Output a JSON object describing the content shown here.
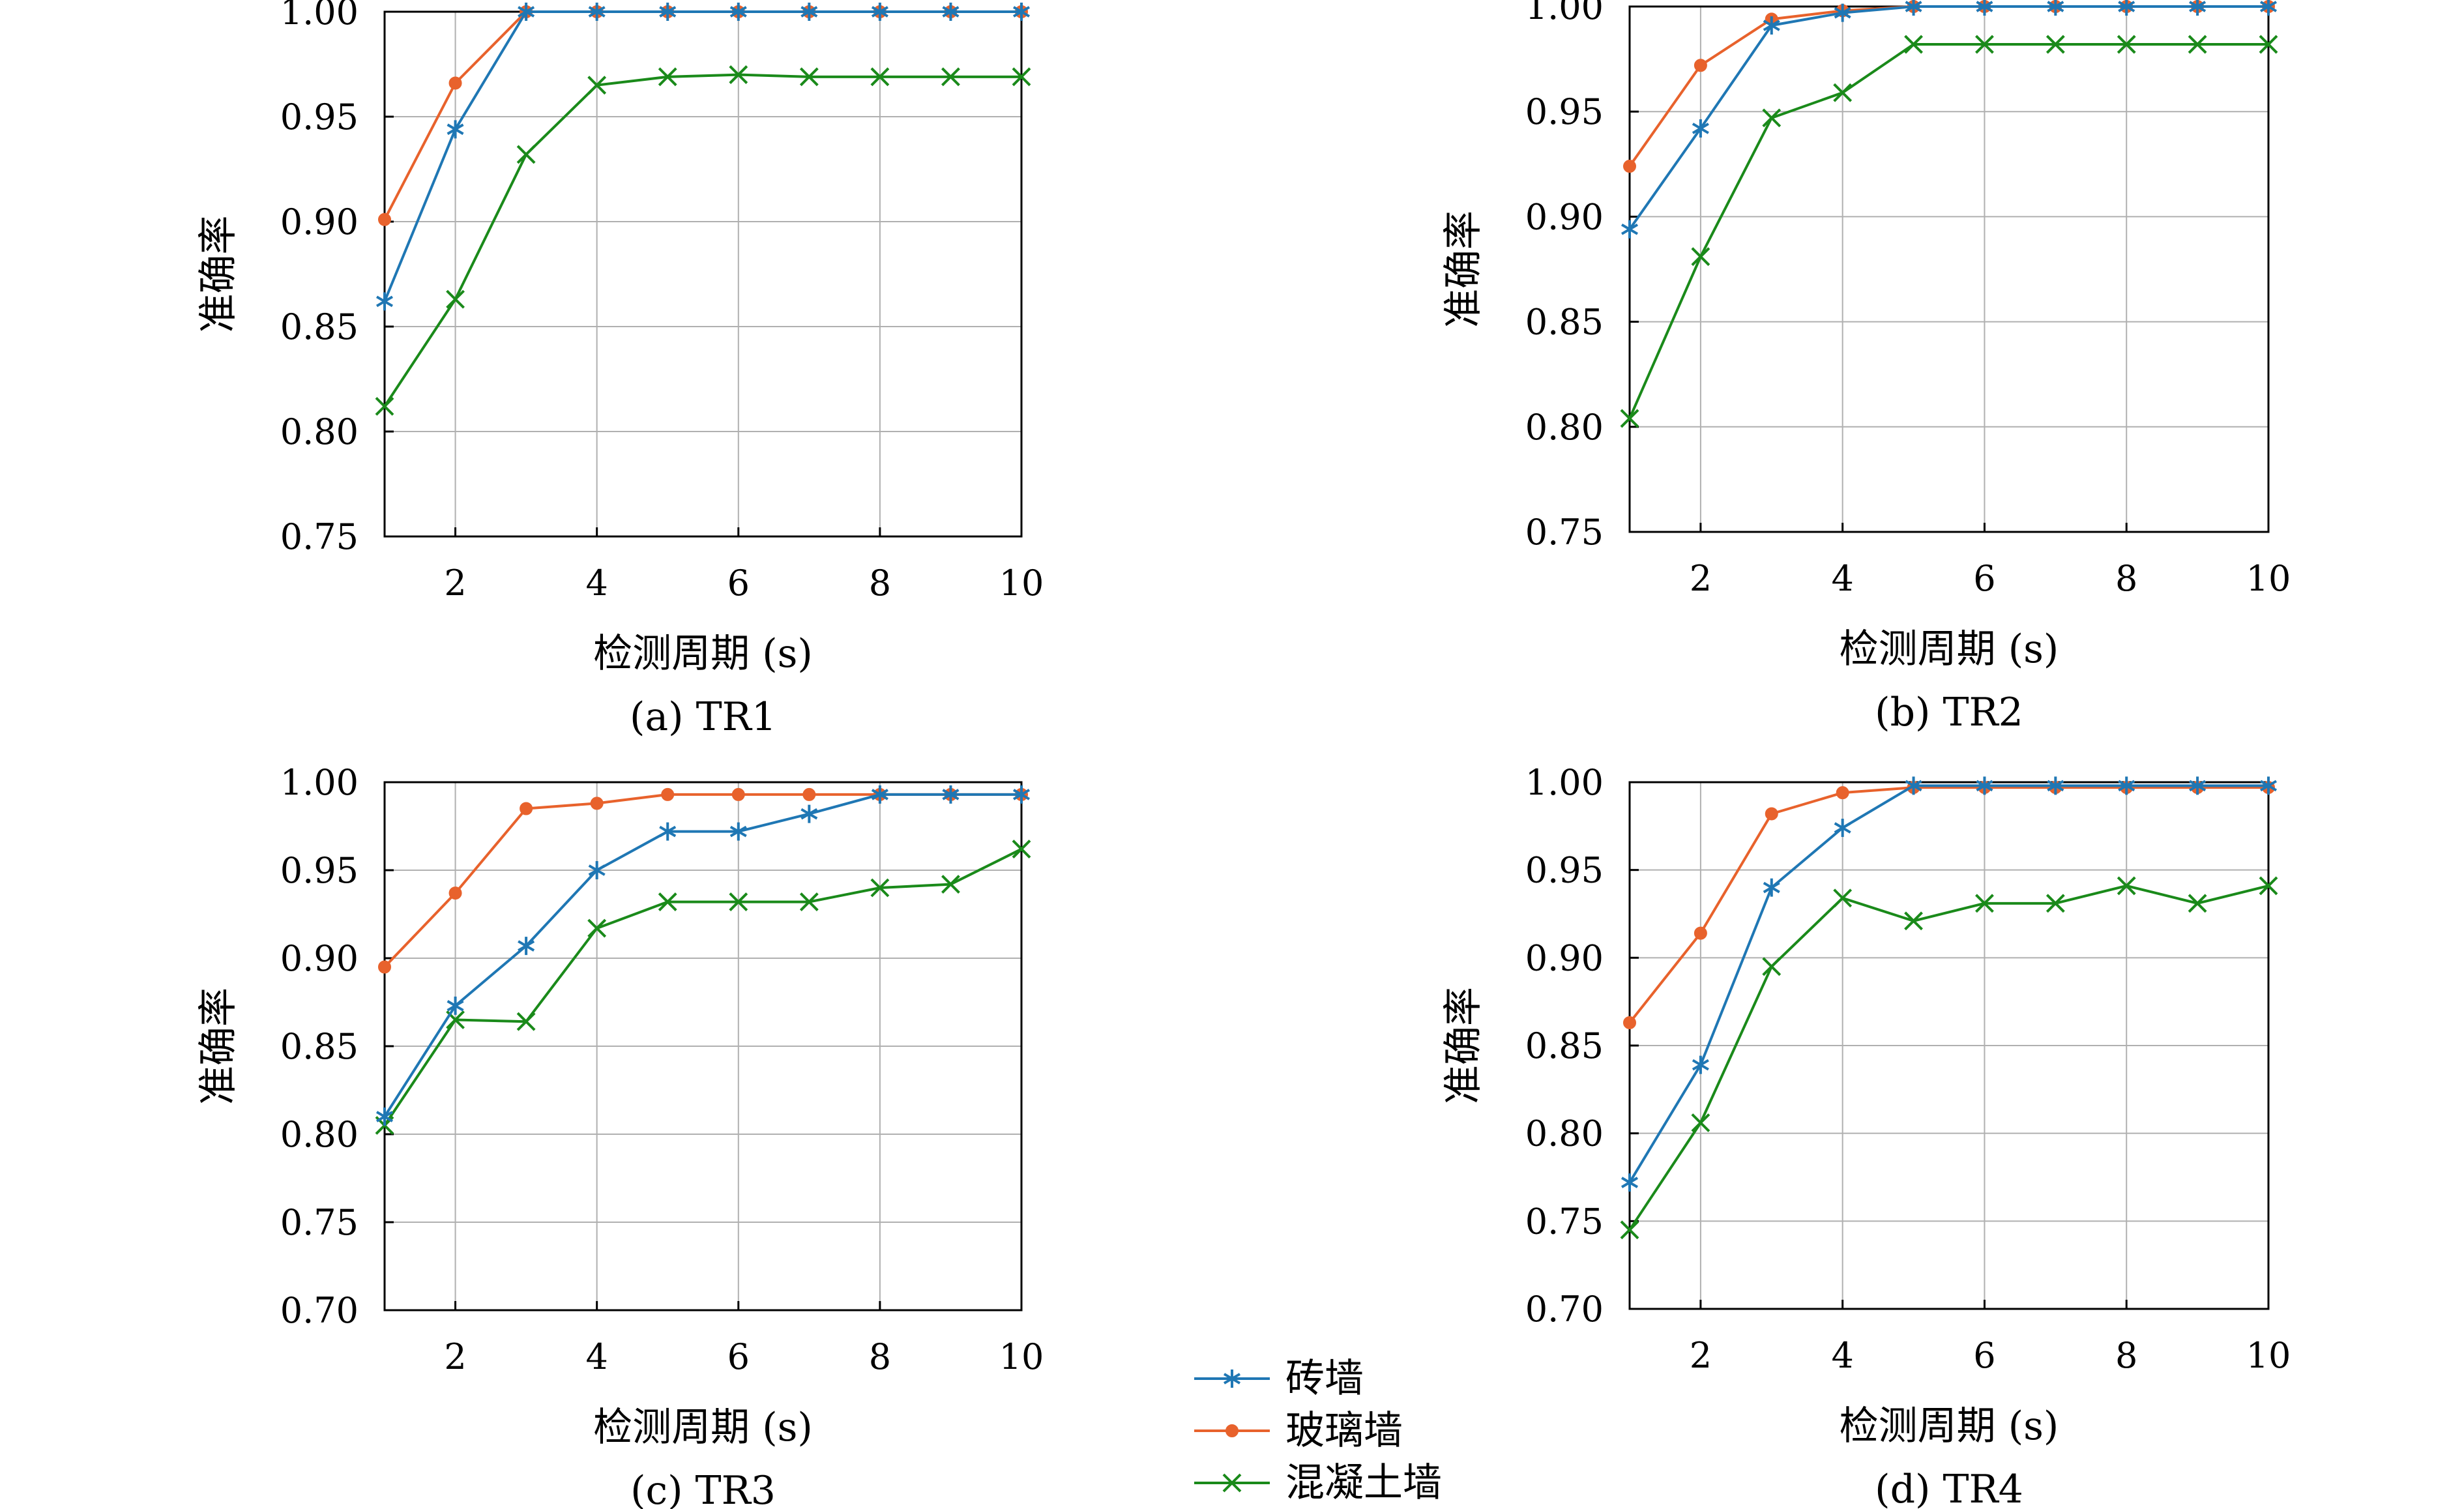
{
  "series_styles": [
    {
      "name": "砖墙",
      "color": "#1f77b4",
      "marker": "asterisk"
    },
    {
      "name": "玻璃墙",
      "color": "#e8622c",
      "marker": "dot"
    },
    {
      "name": "混凝土墙",
      "color": "#1a8a1a",
      "marker": "x"
    }
  ],
  "legend": {
    "placement": "bottom-center",
    "items": [
      "砖墙",
      "玻璃墙",
      "混凝土墙"
    ]
  },
  "chart_data": [
    {
      "type": "line",
      "caption": "(a) TR1",
      "xlabel": "检测周期 (s)",
      "ylabel": "准确率",
      "xlim": [
        1,
        10
      ],
      "ylim": [
        0.75,
        1.0
      ],
      "xticks": [
        2,
        4,
        6,
        8,
        10
      ],
      "yticks": [
        0.75,
        0.8,
        0.85,
        0.9,
        0.95,
        1.0
      ],
      "ytick_labels": [
        "0.75",
        "0.80",
        "0.85",
        "0.90",
        "0.95",
        "1.00"
      ],
      "grid": true,
      "x": [
        1,
        2,
        3,
        4,
        5,
        6,
        7,
        8,
        9,
        10
      ],
      "series": [
        {
          "name": "砖墙",
          "values": [
            0.862,
            0.944,
            1.0,
            1.0,
            1.0,
            1.0,
            1.0,
            1.0,
            1.0,
            1.0
          ]
        },
        {
          "name": "玻璃墙",
          "values": [
            0.901,
            0.966,
            1.0,
            1.0,
            1.0,
            1.0,
            1.0,
            1.0,
            1.0,
            1.0
          ]
        },
        {
          "name": "混凝土墙",
          "values": [
            0.812,
            0.863,
            0.932,
            0.965,
            0.969,
            0.97,
            0.969,
            0.969,
            0.969,
            0.969
          ]
        }
      ]
    },
    {
      "type": "line",
      "caption": "(b) TR2",
      "xlabel": "检测周期 (s)",
      "ylabel": "准确率",
      "xlim": [
        1,
        10
      ],
      "ylim": [
        0.75,
        1.0
      ],
      "xticks": [
        2,
        4,
        6,
        8,
        10
      ],
      "yticks": [
        0.75,
        0.8,
        0.85,
        0.9,
        0.95,
        1.0
      ],
      "ytick_labels": [
        "0.75",
        "0.80",
        "0.85",
        "0.90",
        "0.95",
        "1.00"
      ],
      "grid": true,
      "x": [
        1,
        2,
        3,
        4,
        5,
        6,
        7,
        8,
        9,
        10
      ],
      "series": [
        {
          "name": "砖墙",
          "values": [
            0.894,
            0.942,
            0.991,
            0.997,
            1.0,
            1.0,
            1.0,
            1.0,
            1.0,
            1.0
          ]
        },
        {
          "name": "玻璃墙",
          "values": [
            0.924,
            0.972,
            0.994,
            0.998,
            1.0,
            1.0,
            1.0,
            1.0,
            1.0,
            1.0
          ]
        },
        {
          "name": "混凝土墙",
          "values": [
            0.804,
            0.881,
            0.947,
            0.959,
            0.982,
            0.982,
            0.982,
            0.982,
            0.982,
            0.982
          ]
        }
      ]
    },
    {
      "type": "line",
      "caption": "(c) TR3",
      "xlabel": "检测周期 (s)",
      "ylabel": "准确率",
      "xlim": [
        1,
        10
      ],
      "ylim": [
        0.7,
        1.0
      ],
      "xticks": [
        2,
        4,
        6,
        8,
        10
      ],
      "yticks": [
        0.7,
        0.75,
        0.8,
        0.85,
        0.9,
        0.95,
        1.0
      ],
      "ytick_labels": [
        "0.70",
        "0.75",
        "0.80",
        "0.85",
        "0.90",
        "0.95",
        "1.00"
      ],
      "grid": true,
      "x": [
        1,
        2,
        3,
        4,
        5,
        6,
        7,
        8,
        9,
        10
      ],
      "series": [
        {
          "name": "砖墙",
          "values": [
            0.81,
            0.873,
            0.907,
            0.95,
            0.972,
            0.972,
            0.982,
            0.993,
            0.993,
            0.993
          ]
        },
        {
          "name": "玻璃墙",
          "values": [
            0.895,
            0.937,
            0.985,
            0.988,
            0.993,
            0.993,
            0.993,
            0.993,
            0.993,
            0.993
          ]
        },
        {
          "name": "混凝土墙",
          "values": [
            0.805,
            0.865,
            0.864,
            0.917,
            0.932,
            0.932,
            0.932,
            0.94,
            0.942,
            0.962
          ]
        }
      ]
    },
    {
      "type": "line",
      "caption": "(d) TR4",
      "xlabel": "检测周期 (s)",
      "ylabel": "准确率",
      "xlim": [
        1,
        10
      ],
      "ylim": [
        0.7,
        1.0
      ],
      "xticks": [
        2,
        4,
        6,
        8,
        10
      ],
      "yticks": [
        0.7,
        0.75,
        0.8,
        0.85,
        0.9,
        0.95,
        1.0
      ],
      "ytick_labels": [
        "0.70",
        "0.75",
        "0.80",
        "0.85",
        "0.90",
        "0.95",
        "1.00"
      ],
      "grid": true,
      "x": [
        1,
        2,
        3,
        4,
        5,
        6,
        7,
        8,
        9,
        10
      ],
      "series": [
        {
          "name": "砖墙",
          "values": [
            0.772,
            0.839,
            0.94,
            0.974,
            0.998,
            0.998,
            0.998,
            0.998,
            0.998,
            0.998
          ]
        },
        {
          "name": "玻璃墙",
          "values": [
            0.863,
            0.914,
            0.982,
            0.994,
            0.997,
            0.997,
            0.997,
            0.997,
            0.997,
            0.997
          ]
        },
        {
          "name": "混凝土墙",
          "values": [
            0.745,
            0.806,
            0.895,
            0.934,
            0.921,
            0.931,
            0.931,
            0.941,
            0.931,
            0.941
          ]
        }
      ]
    }
  ]
}
